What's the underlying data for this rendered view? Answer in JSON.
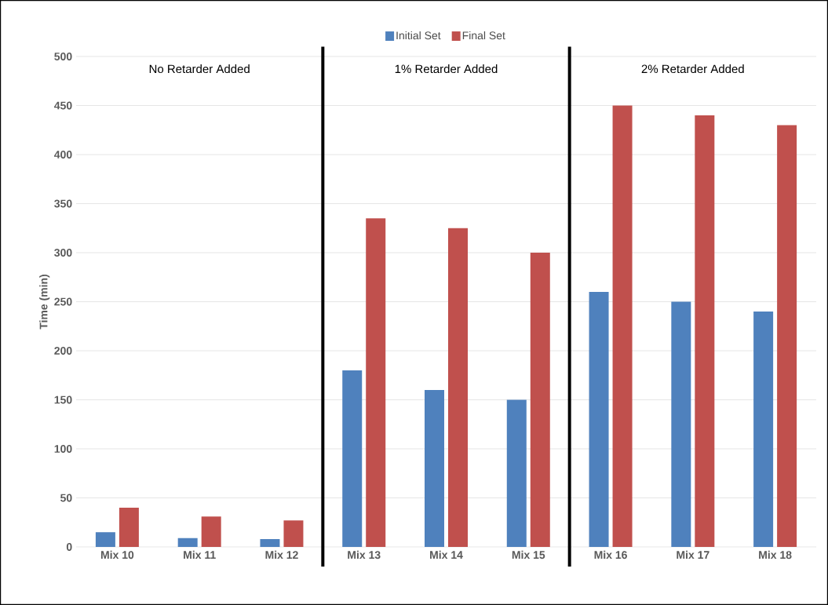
{
  "chart_data": {
    "type": "bar",
    "ylabel": "Time (min)",
    "categories": [
      "Mix 10",
      "Mix 11",
      "Mix 12",
      "Mix 13",
      "Mix 14",
      "Mix 15",
      "Mix 16",
      "Mix 17",
      "Mix 18"
    ],
    "series": [
      {
        "name": "Initial Set",
        "color": "#4f81bd",
        "values": [
          15,
          9,
          8,
          180,
          160,
          150,
          260,
          250,
          240
        ]
      },
      {
        "name": "Final Set",
        "color": "#c0504d",
        "values": [
          40,
          31,
          27,
          335,
          325,
          300,
          450,
          440,
          430
        ]
      }
    ],
    "ylim": [
      0,
      500
    ],
    "yticks": [
      0,
      50,
      100,
      150,
      200,
      250,
      300,
      350,
      400,
      450,
      500
    ],
    "grid": "y",
    "legend": "top",
    "annotations": [
      "No Retarder Added",
      "1% Retarder Added",
      "2% Retarder Added"
    ]
  }
}
